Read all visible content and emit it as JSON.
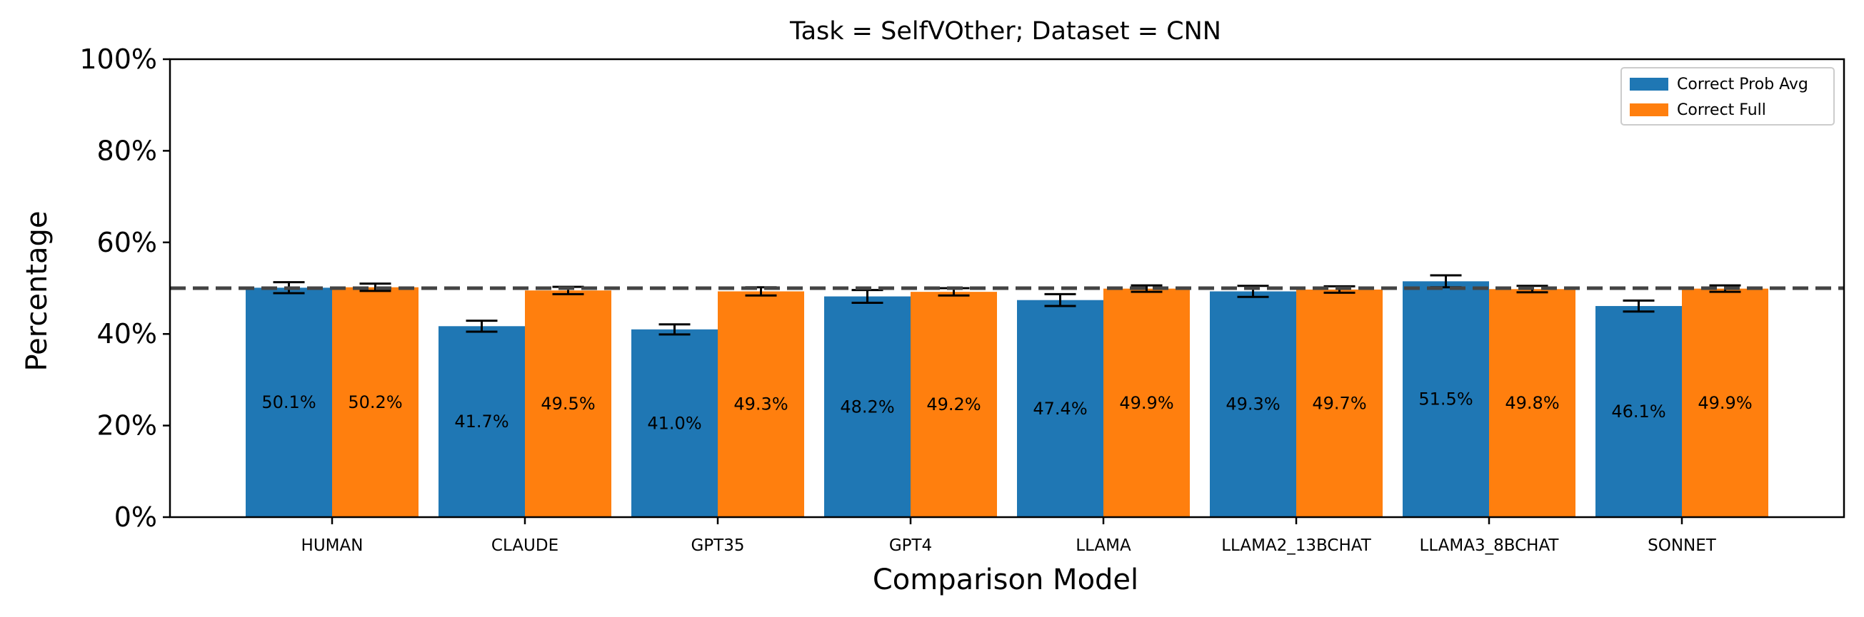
{
  "chart_data": {
    "type": "bar",
    "title": "Task = SelfVOther;  Dataset = CNN",
    "xlabel": "Comparison Model",
    "ylabel": "Percentage",
    "ylim": [
      0,
      100
    ],
    "y_ticks": [
      "0%",
      "20%",
      "40%",
      "60%",
      "80%",
      "100%"
    ],
    "y_tick_values": [
      0,
      20,
      40,
      60,
      80,
      100
    ],
    "categories": [
      "HUMAN",
      "CLAUDE",
      "GPT35",
      "GPT4",
      "LLAMA",
      "LLAMA2_13BCHAT",
      "LLAMA3_8BCHAT",
      "SONNET"
    ],
    "series": [
      {
        "name": "Correct Prob Avg",
        "color": "#1f77b4",
        "values": [
          50.1,
          41.7,
          41.0,
          48.2,
          47.4,
          49.3,
          51.5,
          46.1
        ],
        "labels": [
          "50.1%",
          "41.7%",
          "41.0%",
          "48.2%",
          "47.4%",
          "49.3%",
          "51.5%",
          "46.1%"
        ],
        "error": [
          1.2,
          1.2,
          1.1,
          1.4,
          1.3,
          1.2,
          1.3,
          1.2
        ]
      },
      {
        "name": "Correct Full",
        "color": "#ff7f0e",
        "values": [
          50.2,
          49.5,
          49.3,
          49.2,
          49.9,
          49.7,
          49.8,
          49.9
        ],
        "labels": [
          "50.2%",
          "49.5%",
          "49.3%",
          "49.2%",
          "49.9%",
          "49.7%",
          "49.8%",
          "49.9%"
        ],
        "error": [
          0.8,
          0.8,
          0.9,
          0.8,
          0.7,
          0.7,
          0.7,
          0.7
        ]
      }
    ],
    "reference_line": {
      "value": 50,
      "style": "dashed",
      "color": "#444444"
    },
    "grid": false,
    "legend_position": "top-right"
  }
}
